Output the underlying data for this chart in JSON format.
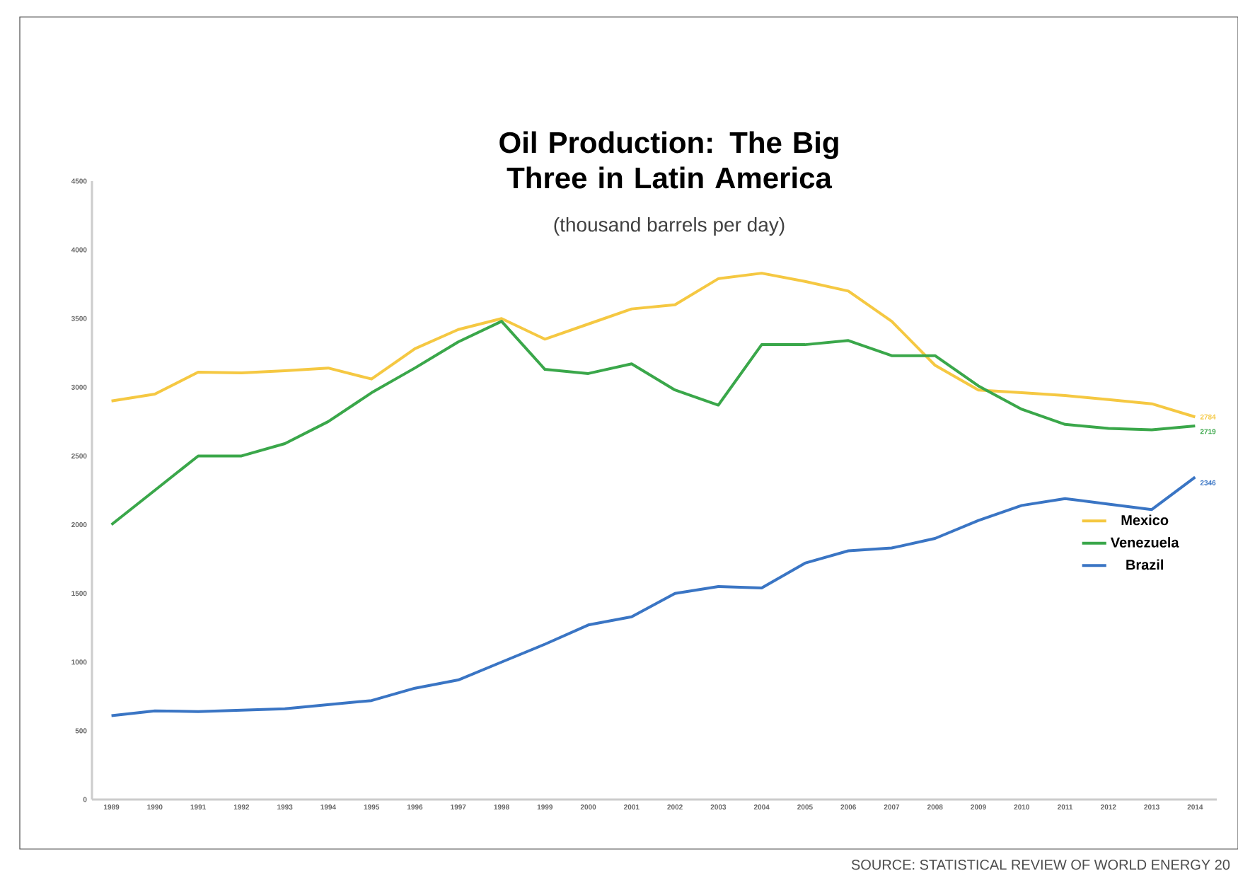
{
  "chart_data": {
    "type": "line",
    "title": "Oil Production: The Big Three in Latin America",
    "subtitle": "(thousand barrels per day)",
    "categories": [
      "1989",
      "1990",
      "1991",
      "1992",
      "1993",
      "1994",
      "1995",
      "1996",
      "1997",
      "1998",
      "1999",
      "2000",
      "2001",
      "2002",
      "2003",
      "2004",
      "2005",
      "2006",
      "2007",
      "2008",
      "2009",
      "2010",
      "2011",
      "2012",
      "2013",
      "2014"
    ],
    "series": [
      {
        "name": "Mexico",
        "color": "#f5c842",
        "values": [
          2900,
          2950,
          3110,
          3105,
          3120,
          3140,
          3060,
          3280,
          3420,
          3500,
          3350,
          3460,
          3570,
          3600,
          3790,
          3830,
          3770,
          3700,
          3480,
          3160,
          2980,
          2960,
          2940,
          2910,
          2880,
          2784
        ],
        "value_labels": [
          null,
          null,
          null,
          null,
          null,
          null,
          null,
          null,
          null,
          null,
          null,
          null,
          null,
          null,
          null,
          null,
          null,
          null,
          null,
          null,
          null,
          null,
          null,
          null,
          null,
          "2784"
        ]
      },
      {
        "name": "Venezuela",
        "color": "#3aa74a",
        "values": [
          2000,
          2250,
          2500,
          2500,
          2590,
          2750,
          2960,
          3140,
          3330,
          3480,
          3130,
          3100,
          3170,
          2980,
          2870,
          3310,
          3310,
          3340,
          3230,
          3230,
          3010,
          2840,
          2730,
          2700,
          2690,
          2719
        ],
        "value_labels": [
          null,
          null,
          null,
          null,
          null,
          null,
          null,
          null,
          null,
          null,
          null,
          null,
          null,
          null,
          null,
          null,
          null,
          null,
          null,
          null,
          null,
          null,
          null,
          null,
          null,
          "2719"
        ]
      },
      {
        "name": "Brazil",
        "color": "#3a75c4",
        "values": [
          610,
          645,
          640,
          650,
          660,
          690,
          720,
          810,
          870,
          1000,
          1130,
          1270,
          1330,
          1500,
          1550,
          1540,
          1720,
          1810,
          1830,
          1900,
          2030,
          2140,
          2190,
          2150,
          2110,
          2346
        ],
        "value_labels": [
          null,
          null,
          null,
          null,
          null,
          null,
          null,
          null,
          null,
          null,
          null,
          null,
          null,
          null,
          null,
          null,
          null,
          null,
          null,
          null,
          null,
          null,
          null,
          null,
          null,
          "2346"
        ]
      }
    ],
    "ylim": [
      0,
      4500
    ],
    "yticks": [
      0,
      500,
      1000,
      1500,
      2000,
      2500,
      3000,
      3500,
      4000,
      4500
    ],
    "grid": false,
    "legend": "right",
    "marker": "none",
    "line_style": "solid",
    "annotations": [
      "SOURCE: STATISTICAL REVIEW OF WORLD ENERGY 20"
    ]
  }
}
